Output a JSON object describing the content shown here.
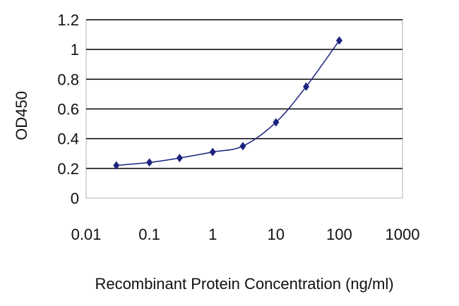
{
  "chart_data": {
    "type": "scatter",
    "xscale": "log",
    "xlabel": "Recombinant Protein Concentration (ng/ml)",
    "ylabel": "OD450",
    "xlim": [
      0.01,
      1000
    ],
    "ylim": [
      0,
      1.2
    ],
    "xticks": [
      "0.01",
      "0.1",
      "1",
      "10",
      "100",
      "1000"
    ],
    "yticks": [
      "0",
      "0.2",
      "0.4",
      "0.6",
      "0.8",
      "1",
      "1.2"
    ],
    "grid": "horizontal",
    "series": [
      {
        "x": [
          0.03,
          0.1,
          0.3,
          1,
          3,
          10,
          30,
          100
        ],
        "y": [
          0.22,
          0.24,
          0.27,
          0.31,
          0.35,
          0.51,
          0.75,
          1.06
        ],
        "marker": "diamond",
        "fit_line": true
      }
    ],
    "colors": {
      "marker": "#1a237e",
      "line": "#1a237e",
      "grid": "#000000"
    }
  }
}
